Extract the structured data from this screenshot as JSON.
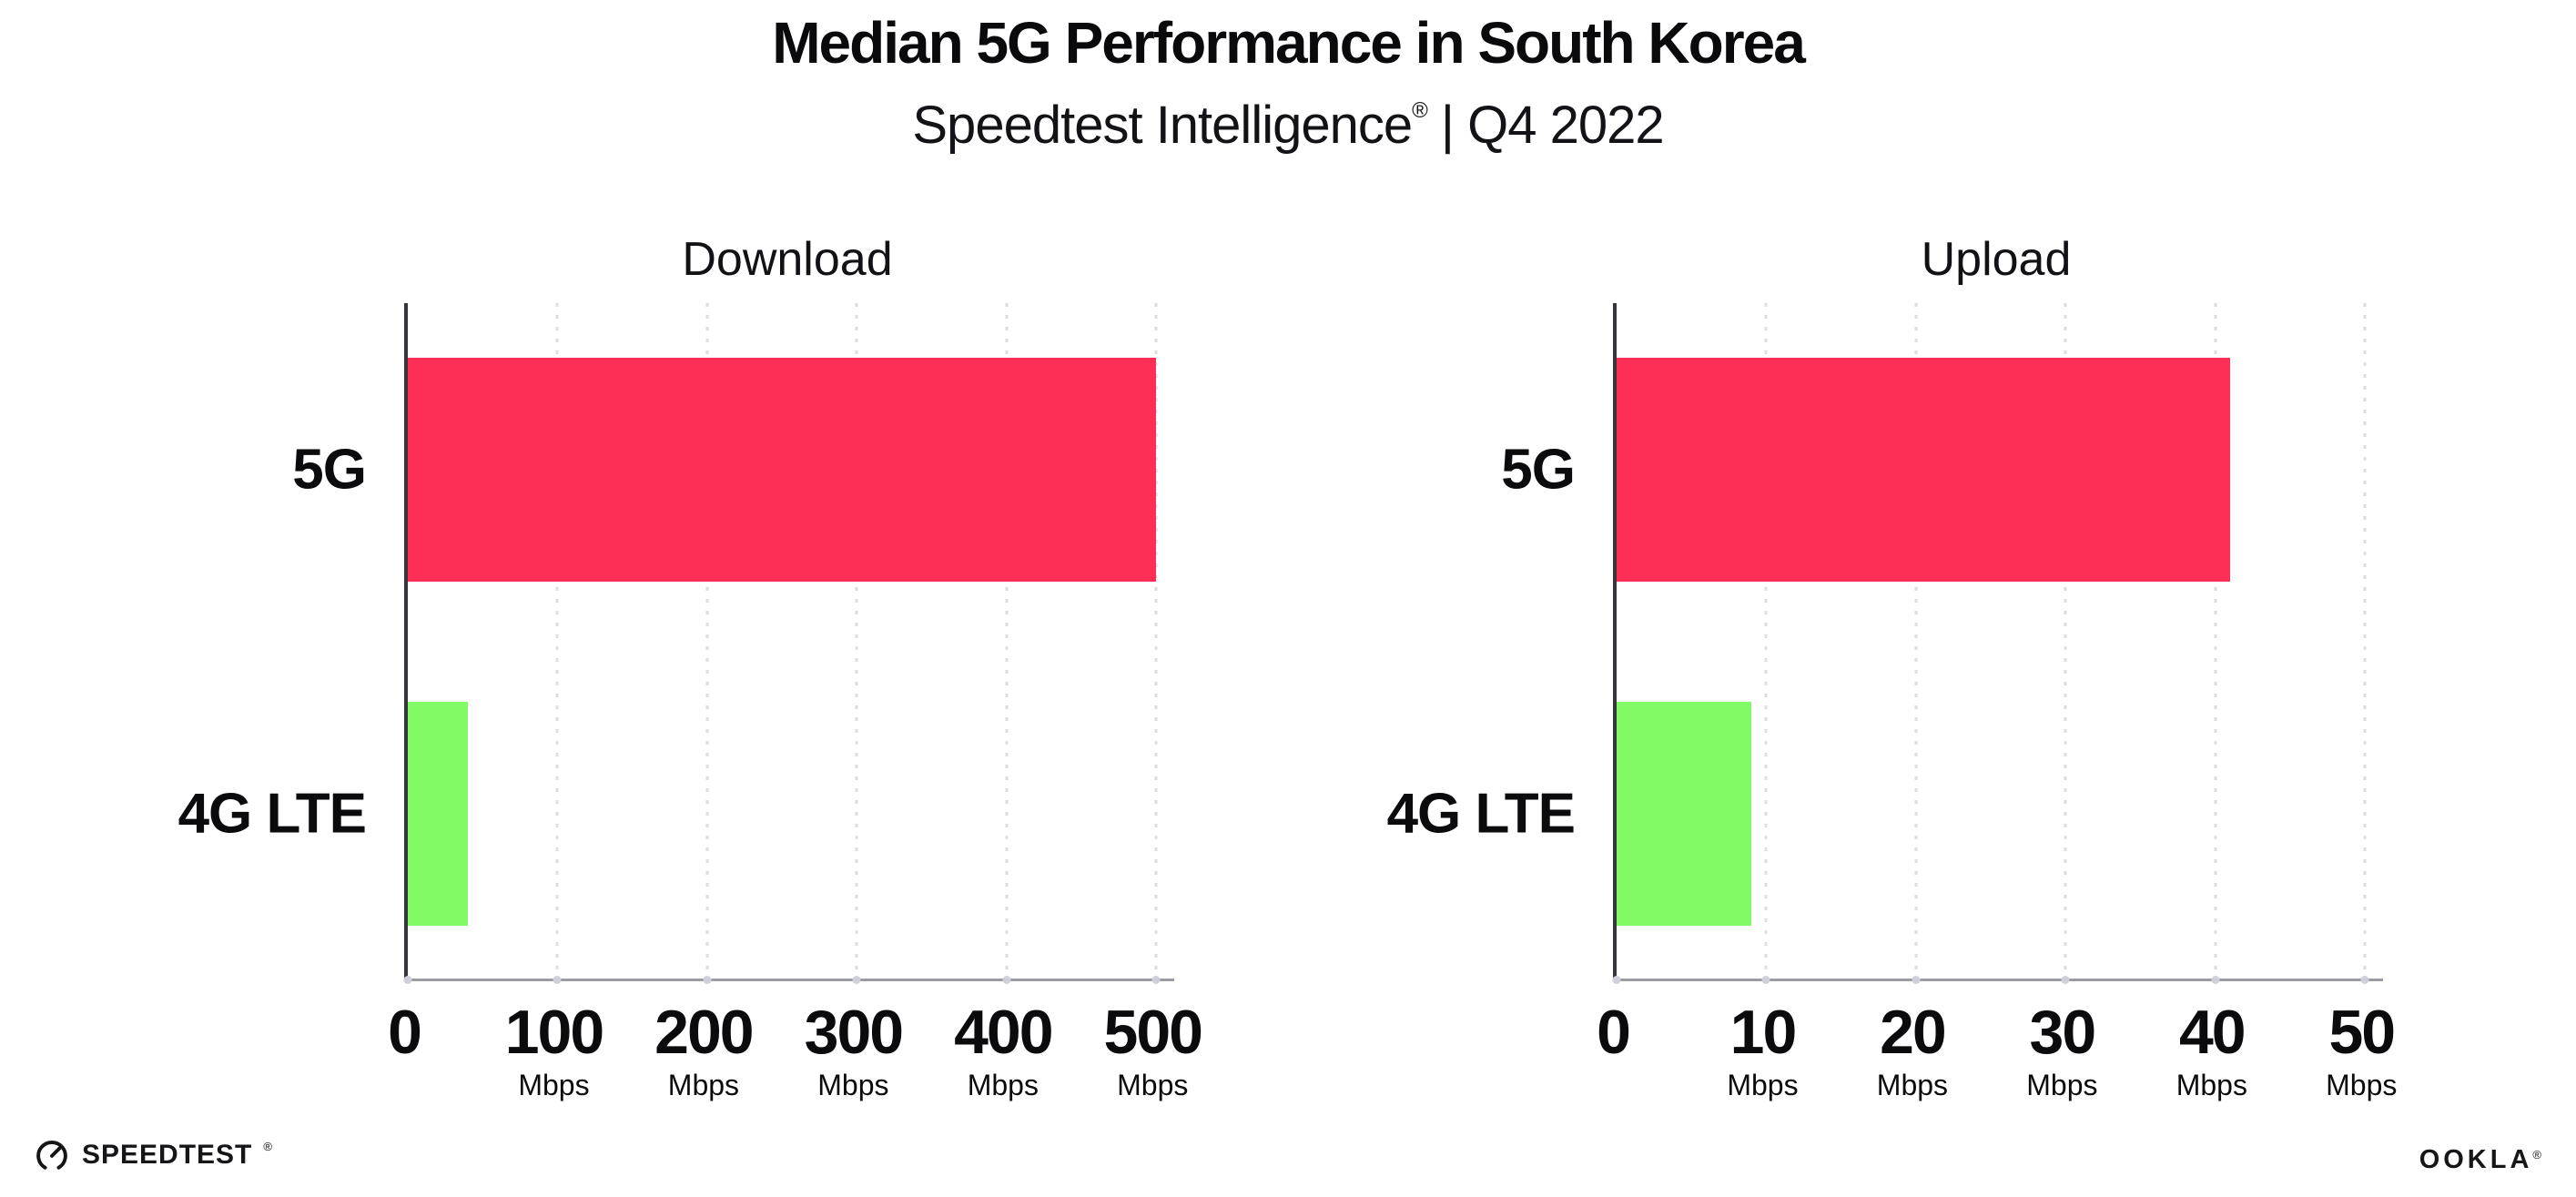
{
  "header": {
    "title": "Median 5G Performance in South Korea",
    "subtitle_brand": "Speedtest Intelligence",
    "subtitle_reg": "®",
    "subtitle_rest": " | Q4 2022"
  },
  "footer": {
    "speedtest_label": "SPEEDTEST",
    "speedtest_reg": "®",
    "ookla_label": "OOKLA",
    "ookla_reg": "®"
  },
  "colors": {
    "bar_5g": "#ff2e56",
    "bar_4g_lte": "#81fa66",
    "axis_line": "#35353b",
    "baseline": "#9b9ba3",
    "gridline": "#dcdce6",
    "text": "#0b0b0e"
  },
  "chart_data": [
    {
      "type": "bar",
      "orientation": "horizontal",
      "title": "Download",
      "categories": [
        "5G",
        "4G LTE"
      ],
      "values": [
        500,
        40
      ],
      "unit": "Mbps",
      "xlabel": "",
      "ylabel": "",
      "xlim": [
        0,
        512
      ],
      "xticks": [
        0,
        100,
        200,
        300,
        400,
        500
      ],
      "xtick_unit": "Mbps",
      "grid": "vertical-dotted",
      "legend": "none",
      "bar_colors": [
        "#ff2e56",
        "#81fa66"
      ]
    },
    {
      "type": "bar",
      "orientation": "horizontal",
      "title": "Upload",
      "categories": [
        "5G",
        "4G LTE"
      ],
      "values": [
        41,
        9
      ],
      "unit": "Mbps",
      "xlabel": "",
      "ylabel": "",
      "xlim": [
        0,
        51.2
      ],
      "xticks": [
        0,
        10,
        20,
        30,
        40,
        50
      ],
      "xtick_unit": "Mbps",
      "grid": "vertical-dotted",
      "legend": "none",
      "bar_colors": [
        "#ff2e56",
        "#81fa66"
      ]
    }
  ]
}
